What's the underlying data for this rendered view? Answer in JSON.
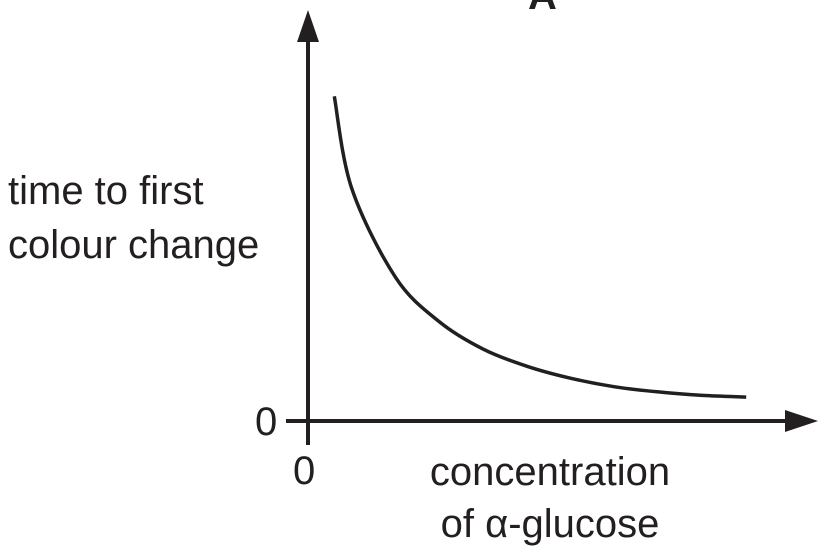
{
  "panel_label": "A",
  "chart_data": {
    "type": "line",
    "title": "",
    "ylabel_lines": [
      "time to first",
      "colour change"
    ],
    "xlabel_lines": [
      "concentration",
      "of α-glucose"
    ],
    "x_origin_label": "0",
    "y_origin_label": "0",
    "series": [
      {
        "x": [
          0.06,
          0.1,
          0.2,
          0.3,
          0.4,
          0.5,
          0.6,
          0.7,
          0.8,
          0.9,
          1.0
        ],
        "y": [
          0.95,
          0.68,
          0.42,
          0.29,
          0.21,
          0.16,
          0.125,
          0.1,
          0.085,
          0.075,
          0.07
        ]
      }
    ],
    "xlim": [
      0,
      1.1
    ],
    "ylim": [
      0,
      1.1
    ],
    "grid": false,
    "axis_color": "#231f20",
    "line_color": "#231f20"
  }
}
